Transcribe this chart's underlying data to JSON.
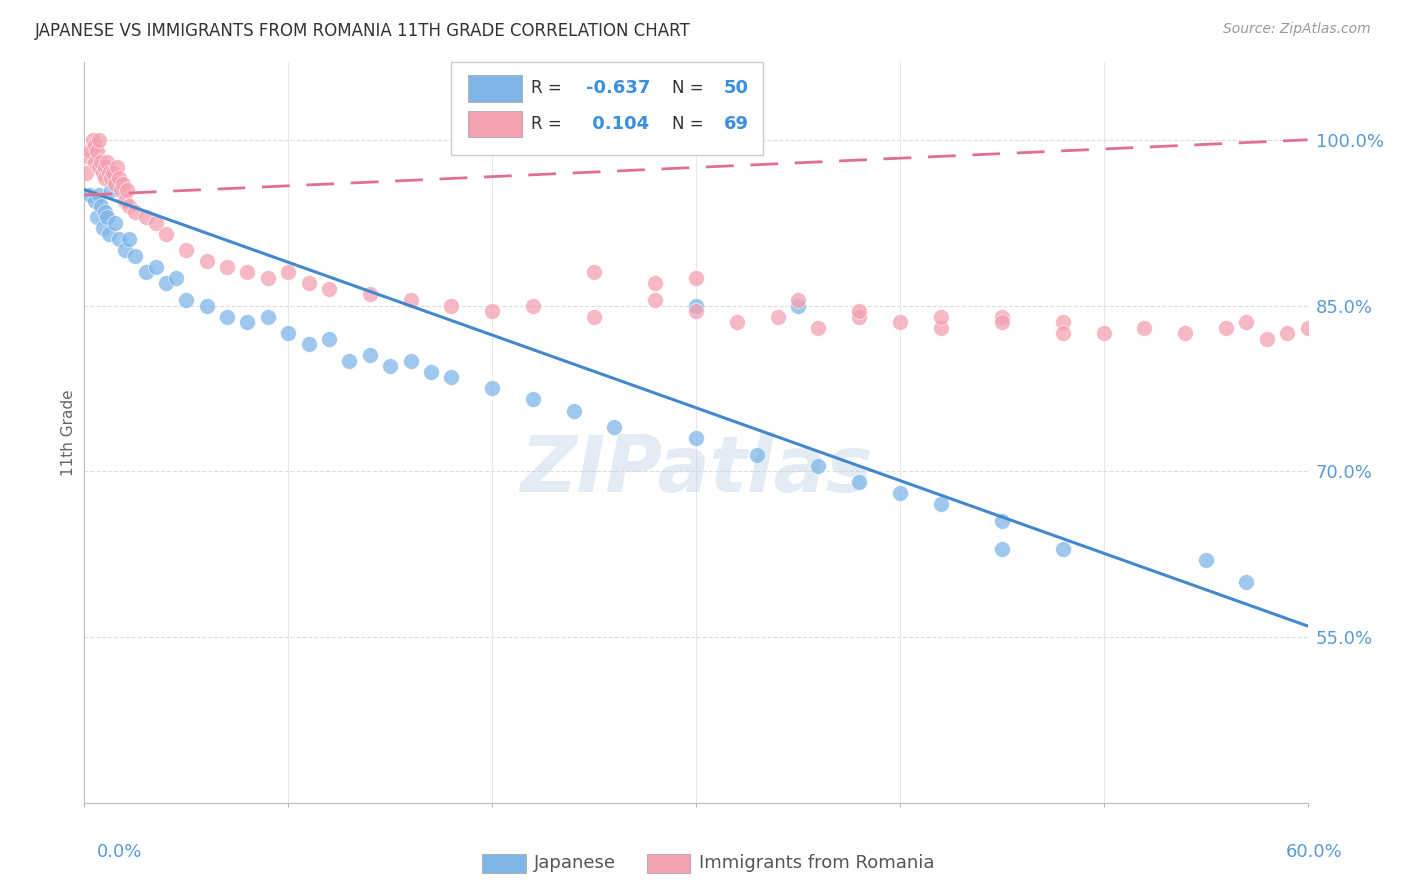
{
  "title": "JAPANESE VS IMMIGRANTS FROM ROMANIA 11TH GRADE CORRELATION CHART",
  "source": "Source: ZipAtlas.com",
  "ylabel": "11th Grade",
  "xlim": [
    0.0,
    60.0
  ],
  "ylim": [
    40.0,
    107.0
  ],
  "yticks_right": [
    55.0,
    70.0,
    85.0,
    100.0
  ],
  "xticks": [
    0.0,
    10.0,
    20.0,
    30.0,
    40.0,
    50.0,
    60.0
  ],
  "blue_color": "#7EB6E8",
  "pink_color": "#F4A0B0",
  "blue_line_color": "#4488CC",
  "pink_line_color": "#E07090",
  "watermark": "ZIPatlas",
  "blue_scatter_x": [
    0.3,
    0.5,
    0.6,
    0.7,
    0.8,
    0.9,
    1.0,
    1.1,
    1.2,
    1.3,
    1.5,
    1.7,
    2.0,
    2.2,
    2.5,
    3.0,
    3.5,
    4.0,
    4.5,
    5.0,
    6.0,
    7.0,
    8.0,
    9.0,
    10.0,
    11.0,
    12.0,
    13.0,
    14.0,
    15.0,
    16.0,
    17.0,
    18.0,
    20.0,
    22.0,
    24.0,
    26.0,
    30.0,
    33.0,
    36.0,
    38.0,
    40.0,
    42.0,
    45.0,
    48.0,
    55.0,
    57.0,
    30.0,
    35.0,
    45.0
  ],
  "blue_scatter_y": [
    95.0,
    94.5,
    93.0,
    95.0,
    94.0,
    92.0,
    93.5,
    93.0,
    91.5,
    95.5,
    92.5,
    91.0,
    90.0,
    91.0,
    89.5,
    88.0,
    88.5,
    87.0,
    87.5,
    85.5,
    85.0,
    84.0,
    83.5,
    84.0,
    82.5,
    81.5,
    82.0,
    80.0,
    80.5,
    79.5,
    80.0,
    79.0,
    78.5,
    77.5,
    76.5,
    75.5,
    74.0,
    73.0,
    71.5,
    70.5,
    69.0,
    68.0,
    67.0,
    65.5,
    63.0,
    62.0,
    60.0,
    85.0,
    85.0,
    63.0
  ],
  "pink_scatter_x": [
    0.1,
    0.2,
    0.3,
    0.4,
    0.5,
    0.5,
    0.6,
    0.7,
    0.7,
    0.8,
    0.9,
    1.0,
    1.0,
    1.1,
    1.2,
    1.3,
    1.4,
    1.5,
    1.6,
    1.7,
    1.8,
    1.9,
    2.0,
    2.1,
    2.2,
    2.5,
    3.0,
    3.5,
    4.0,
    5.0,
    6.0,
    7.0,
    8.0,
    9.0,
    10.0,
    11.0,
    12.0,
    14.0,
    16.0,
    18.0,
    20.0,
    22.0,
    25.0,
    28.0,
    30.0,
    32.0,
    34.0,
    36.0,
    38.0,
    40.0,
    42.0,
    45.0,
    48.0,
    50.0,
    52.0,
    54.0,
    56.0,
    57.0,
    58.0,
    59.0,
    60.0,
    25.0,
    28.0,
    30.0,
    35.0,
    38.0,
    42.0,
    45.0,
    48.0
  ],
  "pink_scatter_y": [
    97.0,
    98.5,
    99.0,
    100.0,
    99.5,
    98.0,
    99.0,
    100.0,
    97.5,
    98.0,
    97.0,
    97.5,
    96.5,
    98.0,
    97.0,
    96.5,
    97.0,
    96.0,
    97.5,
    96.5,
    95.5,
    96.0,
    94.5,
    95.5,
    94.0,
    93.5,
    93.0,
    92.5,
    91.5,
    90.0,
    89.0,
    88.5,
    88.0,
    87.5,
    88.0,
    87.0,
    86.5,
    86.0,
    85.5,
    85.0,
    84.5,
    85.0,
    84.0,
    85.5,
    84.5,
    83.5,
    84.0,
    83.0,
    84.0,
    83.5,
    83.0,
    84.0,
    83.5,
    82.5,
    83.0,
    82.5,
    83.0,
    83.5,
    82.0,
    82.5,
    83.0,
    88.0,
    87.0,
    87.5,
    85.5,
    84.5,
    84.0,
    83.5,
    82.5
  ],
  "blue_trend_x": [
    0.0,
    60.0
  ],
  "blue_trend_y": [
    95.5,
    56.0
  ],
  "pink_trend_x": [
    0.0,
    60.0
  ],
  "pink_trend_y": [
    95.0,
    100.0
  ],
  "grid_color": "#DDDDDD",
  "background_color": "#FFFFFF",
  "axis_color": "#BBBBBB",
  "label_color": "#5B9BD5",
  "text_color": "#333333",
  "source_color": "#999999"
}
